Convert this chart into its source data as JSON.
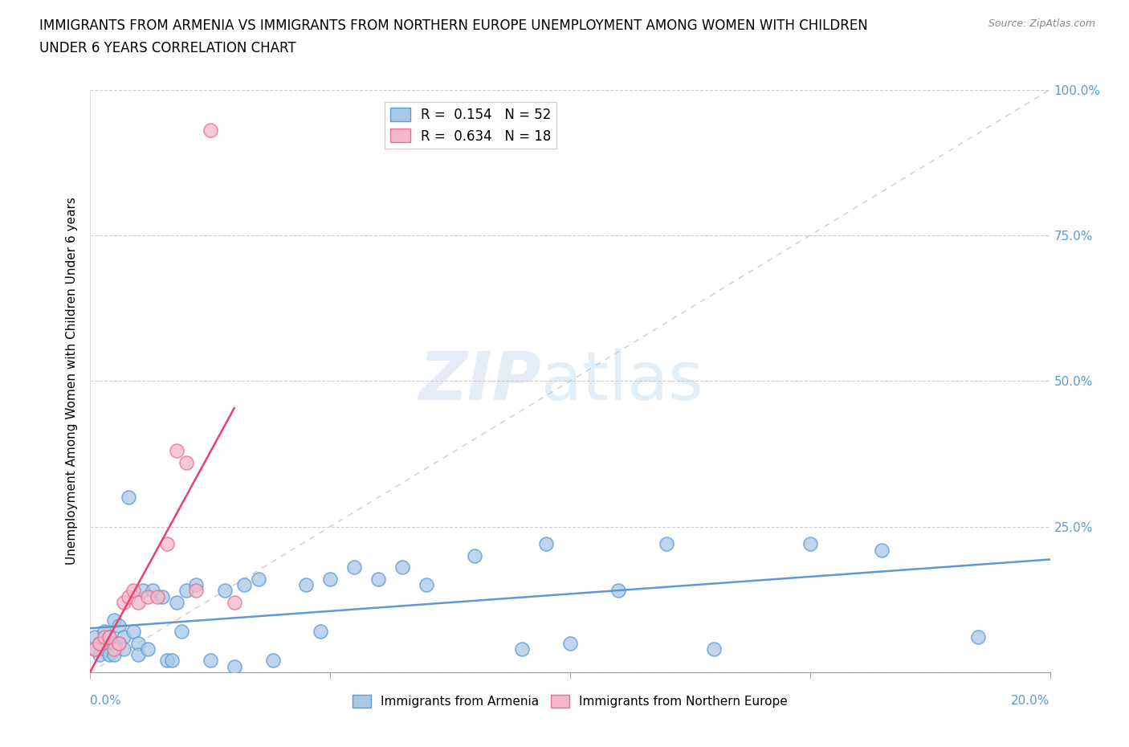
{
  "title_line1": "IMMIGRANTS FROM ARMENIA VS IMMIGRANTS FROM NORTHERN EUROPE UNEMPLOYMENT AMONG WOMEN WITH CHILDREN",
  "title_line2": "UNDER 6 YEARS CORRELATION CHART",
  "source": "Source: ZipAtlas.com",
  "ylabel": "Unemployment Among Women with Children Under 6 years",
  "legend_entry1": "R =  0.154   N = 52",
  "legend_entry2": "R =  0.634   N = 18",
  "legend_label1": "Immigrants from Armenia",
  "legend_label2": "Immigrants from Northern Europe",
  "color_armenia": "#a8c8e8",
  "color_northern": "#f4b8cc",
  "color_armenia_edge": "#5b9bd5",
  "color_northern_edge": "#e87090",
  "color_armenia_line": "#5b9bd5",
  "color_northern_line": "#e84070",
  "color_text_right": "#5b9bd5",
  "color_grid": "#cccccc",
  "watermark_color": "#c8d8f0",
  "xlim": [
    0.0,
    0.2
  ],
  "ylim": [
    0.0,
    1.0
  ],
  "yticks": [
    0.0,
    0.25,
    0.5,
    0.75,
    1.0
  ],
  "xticks": [
    0.0,
    0.05,
    0.1,
    0.15,
    0.2
  ],
  "armenia_x": [
    0.001,
    0.001,
    0.002,
    0.002,
    0.003,
    0.003,
    0.004,
    0.004,
    0.005,
    0.005,
    0.005,
    0.006,
    0.006,
    0.007,
    0.007,
    0.008,
    0.009,
    0.01,
    0.01,
    0.011,
    0.012,
    0.013,
    0.015,
    0.016,
    0.017,
    0.018,
    0.019,
    0.02,
    0.022,
    0.025,
    0.028,
    0.03,
    0.032,
    0.035,
    0.038,
    0.045,
    0.048,
    0.05,
    0.055,
    0.06,
    0.065,
    0.07,
    0.08,
    0.09,
    0.095,
    0.1,
    0.11,
    0.12,
    0.13,
    0.15,
    0.165,
    0.185
  ],
  "armenia_y": [
    0.06,
    0.04,
    0.05,
    0.03,
    0.07,
    0.04,
    0.06,
    0.03,
    0.09,
    0.05,
    0.03,
    0.08,
    0.05,
    0.06,
    0.04,
    0.3,
    0.07,
    0.05,
    0.03,
    0.14,
    0.04,
    0.14,
    0.13,
    0.02,
    0.02,
    0.12,
    0.07,
    0.14,
    0.15,
    0.02,
    0.14,
    0.01,
    0.15,
    0.16,
    0.02,
    0.15,
    0.07,
    0.16,
    0.18,
    0.16,
    0.18,
    0.15,
    0.2,
    0.04,
    0.22,
    0.05,
    0.14,
    0.22,
    0.04,
    0.22,
    0.21,
    0.06
  ],
  "northern_x": [
    0.001,
    0.002,
    0.003,
    0.004,
    0.005,
    0.006,
    0.007,
    0.008,
    0.009,
    0.01,
    0.012,
    0.014,
    0.016,
    0.018,
    0.02,
    0.022,
    0.025,
    0.03
  ],
  "northern_y": [
    0.04,
    0.05,
    0.06,
    0.06,
    0.04,
    0.05,
    0.12,
    0.13,
    0.14,
    0.12,
    0.13,
    0.13,
    0.22,
    0.38,
    0.36,
    0.14,
    0.93,
    0.12
  ],
  "armenia_R": 0.154,
  "northern_R": 0.634,
  "watermark_zip": "ZIP",
  "watermark_atlas": "atlas"
}
